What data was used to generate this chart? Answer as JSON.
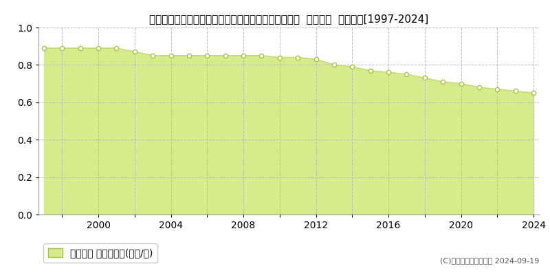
{
  "title": "宮崎県東臼杵郡椎葉村大字下福良字山中２２７番６０  基準地価  地価推移[1997-2024]",
  "years": [
    1997,
    1998,
    1999,
    2000,
    2001,
    2002,
    2003,
    2004,
    2005,
    2006,
    2007,
    2008,
    2009,
    2010,
    2011,
    2012,
    2013,
    2014,
    2015,
    2016,
    2017,
    2018,
    2019,
    2020,
    2021,
    2022,
    2023,
    2024
  ],
  "values": [
    0.89,
    0.89,
    0.89,
    0.89,
    0.89,
    0.87,
    0.85,
    0.85,
    0.85,
    0.85,
    0.85,
    0.85,
    0.85,
    0.84,
    0.84,
    0.83,
    0.8,
    0.79,
    0.77,
    0.76,
    0.75,
    0.73,
    0.71,
    0.7,
    0.68,
    0.67,
    0.66,
    0.65
  ],
  "fill_color": "#d4ed8a",
  "line_color": "#c0d870",
  "marker_facecolor": "#ffffff",
  "marker_edgecolor": "#a8c040",
  "bg_color": "#ffffff",
  "plot_bg_color": "#ffffff",
  "grid_color": "#bbbbbb",
  "ylim": [
    0,
    1.0
  ],
  "yticks": [
    0,
    0.2,
    0.4,
    0.6,
    0.8,
    1.0
  ],
  "legend_label": "基準地価 平均坪単価(万円/坪)",
  "copyright_text": "(C)土地価格ドットコム 2024-09-19",
  "title_fontsize": 11,
  "tick_fontsize": 10,
  "legend_fontsize": 10,
  "copyright_fontsize": 8
}
